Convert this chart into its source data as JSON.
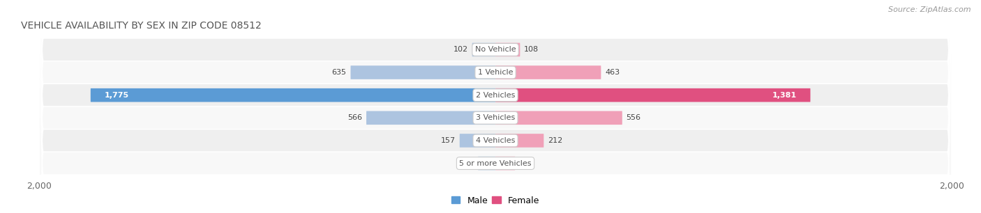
{
  "title": "VEHICLE AVAILABILITY BY SEX IN ZIP CODE 08512",
  "source": "Source: ZipAtlas.com",
  "categories": [
    "No Vehicle",
    "1 Vehicle",
    "2 Vehicles",
    "3 Vehicles",
    "4 Vehicles",
    "5 or more Vehicles"
  ],
  "male_values": [
    102,
    635,
    1775,
    566,
    157,
    76
  ],
  "female_values": [
    108,
    463,
    1381,
    556,
    212,
    86
  ],
  "male_color_light": "#adc4e0",
  "female_color_light": "#f0a0b8",
  "male_color_dark": "#5b9bd5",
  "female_color_dark": "#e05080",
  "row_color_odd": "#efefef",
  "row_color_even": "#f8f8f8",
  "max_value": 2000,
  "legend_male": "Male",
  "legend_female": "Female",
  "title_fontsize": 10,
  "source_fontsize": 8,
  "value_fontsize": 8,
  "category_fontsize": 8,
  "legend_fontsize": 9
}
